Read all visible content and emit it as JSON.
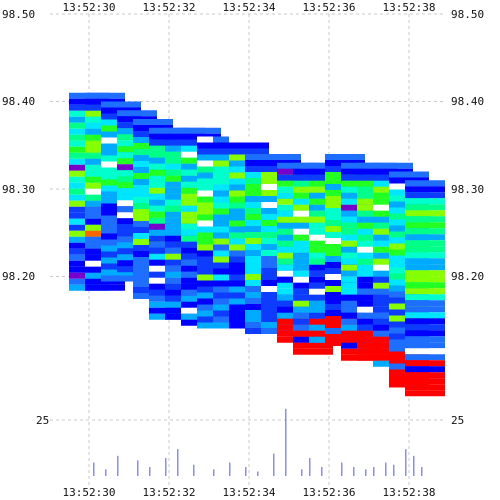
{
  "chart_data": [
    {
      "type": "heatmap",
      "title": "",
      "xlabel": "",
      "ylabel": "",
      "x_ticks": [
        "13:52:30",
        "13:52:32",
        "13:52:34",
        "13:52:36",
        "13:52:38"
      ],
      "y_ticks": [
        "98.50",
        "98.40",
        "98.30",
        "98.20"
      ],
      "ylim": [
        98.1,
        98.5
      ],
      "xlim": [
        "13:52:29.3",
        "13:52:39.3"
      ],
      "grid": true,
      "palette": [
        "#0000ff",
        "#0d3cff",
        "#1e6eff",
        "#00aaff",
        "#00e6ff",
        "#00ffcc",
        "#00ff88",
        "#22ff22",
        "#88ff00",
        "#ffffff",
        "#7700cc",
        "#ff6600",
        "#ff0000"
      ],
      "columns": [
        {
          "t": 0.0,
          "top": 98.41,
          "bottom": 98.18
        },
        {
          "t": 0.4,
          "top": 98.41,
          "bottom": 98.18
        },
        {
          "t": 0.8,
          "top": 98.4,
          "bottom": 98.19
        },
        {
          "t": 1.2,
          "top": 98.39,
          "bottom": 98.2
        },
        {
          "t": 1.6,
          "top": 98.38,
          "bottom": 98.17
        },
        {
          "t": 2.0,
          "top": 98.37,
          "bottom": 98.15
        },
        {
          "t": 2.4,
          "top": 98.37,
          "bottom": 98.15
        },
        {
          "t": 2.8,
          "top": 98.37,
          "bottom": 98.14
        },
        {
          "t": 3.2,
          "top": 98.36,
          "bottom": 98.14
        },
        {
          "t": 3.6,
          "top": 98.36,
          "bottom": 98.14
        },
        {
          "t": 4.0,
          "top": 98.36,
          "bottom": 98.14
        },
        {
          "t": 4.4,
          "top": 98.34,
          "bottom": 98.13
        },
        {
          "t": 4.8,
          "top": 98.34,
          "bottom": 98.13
        },
        {
          "t": 5.2,
          "top": 98.33,
          "bottom": 98.12
        },
        {
          "t": 5.6,
          "top": 98.33,
          "bottom": 98.11
        },
        {
          "t": 6.0,
          "top": 98.33,
          "bottom": 98.12
        },
        {
          "t": 6.4,
          "top": 98.34,
          "bottom": 98.12
        },
        {
          "t": 6.8,
          "top": 98.33,
          "bottom": 98.1
        },
        {
          "t": 7.2,
          "top": 98.33,
          "bottom": 98.1
        },
        {
          "t": 7.6,
          "top": 98.33,
          "bottom": 98.09
        },
        {
          "t": 8.0,
          "top": 98.32,
          "bottom": 98.07
        },
        {
          "t": 8.4,
          "top": 98.31,
          "bottom": 98.06
        }
      ]
    },
    {
      "type": "bar",
      "title": "",
      "y_ticks": [
        "25"
      ],
      "y_tick_values": [
        25
      ],
      "ylim": [
        0,
        40
      ],
      "x_ticks": [
        "13:52:30",
        "13:52:32",
        "13:52:34",
        "13:52:36",
        "13:52:38"
      ],
      "bar_color": "#8c8cf0",
      "x": [
        0.1,
        0.4,
        0.7,
        1.2,
        1.5,
        1.9,
        2.2,
        2.6,
        3.1,
        3.5,
        3.9,
        4.2,
        4.6,
        4.9,
        5.3,
        5.5,
        5.8,
        6.3,
        6.6,
        6.9,
        7.1,
        7.4,
        7.6,
        7.9,
        8.1,
        8.3
      ],
      "values": [
        6,
        3,
        9,
        7,
        4,
        8,
        12,
        5,
        3,
        6,
        4,
        2,
        10,
        30,
        3,
        8,
        4,
        6,
        4,
        3,
        4,
        6,
        5,
        12,
        9,
        4
      ]
    }
  ]
}
